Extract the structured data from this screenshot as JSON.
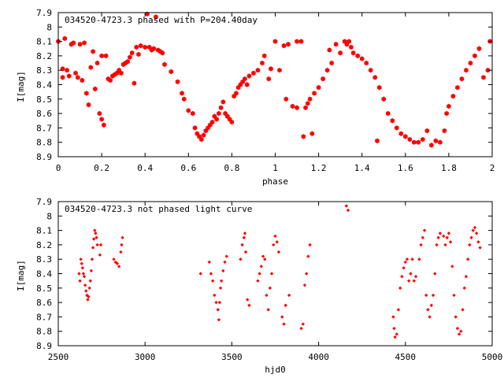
{
  "chart_data": [
    {
      "type": "scatter",
      "title": "034520-4723.3 phased with P=204.40day",
      "xlabel": "phase",
      "ylabel": "I[mag]",
      "xlim": [
        0,
        2
      ],
      "ylim": [
        7.9,
        8.9
      ],
      "y_inverted": true,
      "grid": false,
      "legend": "none",
      "color": "#ff0000",
      "marker": "star",
      "x_ticks": [
        0,
        0.2,
        0.4,
        0.6,
        0.8,
        1,
        1.2,
        1.4,
        1.6,
        1.8,
        2
      ],
      "x_tick_labels": [
        "0",
        "0.2",
        "0.4",
        "0.6",
        "0.8",
        "1",
        "1.2",
        "1.4",
        "1.6",
        "1.8",
        "2"
      ],
      "y_ticks": [
        7.9,
        8.0,
        8.1,
        8.2,
        8.3,
        8.4,
        8.5,
        8.6,
        8.7,
        8.8,
        8.9
      ],
      "y_tick_labels": [
        "7.9",
        "8",
        "8.1",
        "8.2",
        "8.3",
        "8.4",
        "8.5",
        "8.6",
        "8.7",
        "8.8",
        "8.9"
      ],
      "points": [
        [
          0.0,
          8.1
        ],
        [
          0.02,
          8.29
        ],
        [
          0.02,
          8.35
        ],
        [
          0.03,
          8.08
        ],
        [
          0.04,
          8.3
        ],
        [
          0.05,
          8.34
        ],
        [
          0.06,
          8.12
        ],
        [
          0.07,
          8.11
        ],
        [
          0.08,
          8.32
        ],
        [
          0.09,
          8.35
        ],
        [
          0.1,
          8.12
        ],
        [
          0.11,
          8.37
        ],
        [
          0.12,
          8.11
        ],
        [
          0.13,
          8.46
        ],
        [
          0.14,
          8.54
        ],
        [
          0.15,
          8.28
        ],
        [
          0.16,
          8.17
        ],
        [
          0.17,
          8.43
        ],
        [
          0.18,
          8.25
        ],
        [
          0.19,
          8.6
        ],
        [
          0.2,
          8.64
        ],
        [
          0.2,
          8.2
        ],
        [
          0.21,
          8.68
        ],
        [
          0.22,
          8.2
        ],
        [
          0.23,
          8.36
        ],
        [
          0.24,
          8.37
        ],
        [
          0.25,
          8.34
        ],
        [
          0.26,
          8.33
        ],
        [
          0.27,
          8.32
        ],
        [
          0.28,
          8.3
        ],
        [
          0.29,
          8.32
        ],
        [
          0.3,
          8.26
        ],
        [
          0.31,
          8.25
        ],
        [
          0.32,
          8.24
        ],
        [
          0.33,
          8.21
        ],
        [
          0.34,
          8.18
        ],
        [
          0.35,
          8.39
        ],
        [
          0.36,
          8.14
        ],
        [
          0.37,
          8.19
        ],
        [
          0.38,
          8.13
        ],
        [
          0.4,
          8.14
        ],
        [
          0.41,
          7.91
        ],
        [
          0.42,
          8.14
        ],
        [
          0.43,
          8.16
        ],
        [
          0.44,
          8.15
        ],
        [
          0.45,
          7.93
        ],
        [
          0.46,
          8.16
        ],
        [
          0.47,
          8.17
        ],
        [
          0.48,
          8.18
        ],
        [
          0.49,
          8.26
        ],
        [
          0.52,
          8.31
        ],
        [
          0.55,
          8.38
        ],
        [
          0.57,
          8.46
        ],
        [
          0.58,
          8.5
        ],
        [
          0.6,
          8.58
        ],
        [
          0.62,
          8.6
        ],
        [
          0.63,
          8.7
        ],
        [
          0.64,
          8.74
        ],
        [
          0.65,
          8.76
        ],
        [
          0.66,
          8.78
        ],
        [
          0.67,
          8.75
        ],
        [
          0.68,
          8.72
        ],
        [
          0.69,
          8.7
        ],
        [
          0.7,
          8.68
        ],
        [
          0.71,
          8.66
        ],
        [
          0.72,
          8.62
        ],
        [
          0.73,
          8.64
        ],
        [
          0.74,
          8.6
        ],
        [
          0.75,
          8.56
        ],
        [
          0.76,
          8.52
        ],
        [
          0.77,
          8.6
        ],
        [
          0.78,
          8.62
        ],
        [
          0.79,
          8.64
        ],
        [
          0.8,
          8.66
        ],
        [
          0.81,
          8.48
        ],
        [
          0.82,
          8.46
        ],
        [
          0.83,
          8.42
        ],
        [
          0.84,
          8.4
        ],
        [
          0.85,
          8.38
        ],
        [
          0.86,
          8.36
        ],
        [
          0.87,
          8.4
        ],
        [
          0.88,
          8.34
        ],
        [
          0.9,
          8.32
        ],
        [
          0.92,
          8.3
        ],
        [
          0.94,
          8.25
        ],
        [
          0.95,
          8.2
        ],
        [
          0.97,
          8.36
        ],
        [
          0.98,
          8.29
        ],
        [
          1.0,
          8.1
        ],
        [
          1.02,
          8.3
        ],
        [
          1.04,
          8.13
        ],
        [
          1.05,
          8.5
        ],
        [
          1.06,
          8.12
        ],
        [
          1.08,
          8.55
        ],
        [
          1.1,
          8.1
        ],
        [
          1.1,
          8.56
        ],
        [
          1.12,
          8.1
        ],
        [
          1.13,
          8.76
        ],
        [
          1.14,
          8.56
        ],
        [
          1.15,
          8.53
        ],
        [
          1.16,
          8.5
        ],
        [
          1.17,
          8.74
        ],
        [
          1.18,
          8.46
        ],
        [
          1.2,
          8.42
        ],
        [
          1.22,
          8.36
        ],
        [
          1.24,
          8.3
        ],
        [
          1.25,
          8.16
        ],
        [
          1.26,
          8.25
        ],
        [
          1.28,
          8.12
        ],
        [
          1.3,
          8.18
        ],
        [
          1.32,
          8.1
        ],
        [
          1.33,
          8.12
        ],
        [
          1.34,
          8.1
        ],
        [
          1.35,
          8.14
        ],
        [
          1.36,
          8.18
        ],
        [
          1.38,
          8.2
        ],
        [
          1.4,
          8.22
        ],
        [
          1.42,
          8.25
        ],
        [
          1.44,
          8.3
        ],
        [
          1.46,
          8.35
        ],
        [
          1.47,
          8.79
        ],
        [
          1.48,
          8.42
        ],
        [
          1.5,
          8.5
        ],
        [
          1.52,
          8.6
        ],
        [
          1.54,
          8.65
        ],
        [
          1.56,
          8.7
        ],
        [
          1.58,
          8.74
        ],
        [
          1.6,
          8.76
        ],
        [
          1.62,
          8.78
        ],
        [
          1.64,
          8.8
        ],
        [
          1.66,
          8.8
        ],
        [
          1.68,
          8.78
        ],
        [
          1.7,
          8.72
        ],
        [
          1.72,
          8.82
        ],
        [
          1.74,
          8.79
        ],
        [
          1.76,
          8.8
        ],
        [
          1.78,
          8.72
        ],
        [
          1.79,
          8.6
        ],
        [
          1.8,
          8.55
        ],
        [
          1.82,
          8.48
        ],
        [
          1.84,
          8.42
        ],
        [
          1.86,
          8.36
        ],
        [
          1.88,
          8.3
        ],
        [
          1.9,
          8.25
        ],
        [
          1.92,
          8.2
        ],
        [
          1.94,
          8.15
        ],
        [
          1.96,
          8.35
        ],
        [
          1.98,
          8.3
        ],
        [
          1.99,
          8.1
        ]
      ]
    },
    {
      "type": "scatter",
      "title": "034520-4723.3 not phased light curve",
      "xlabel": "hjd0",
      "ylabel": "I[mag]",
      "xlim": [
        2500,
        5000
      ],
      "ylim": [
        7.9,
        8.9
      ],
      "y_inverted": true,
      "grid": false,
      "legend": "none",
      "color": "#ff0000",
      "marker": "diamond",
      "x_ticks": [
        2500,
        3000,
        3500,
        4000,
        4500,
        5000
      ],
      "x_tick_labels": [
        "2500",
        "3000",
        "3500",
        "4000",
        "4500",
        "5000"
      ],
      "y_ticks": [
        7.9,
        8.0,
        8.1,
        8.2,
        8.3,
        8.4,
        8.5,
        8.6,
        8.7,
        8.8,
        8.9
      ],
      "y_tick_labels": [
        "7.9",
        "8",
        "8.1",
        "8.2",
        "8.3",
        "8.4",
        "8.5",
        "8.6",
        "8.7",
        "8.8",
        "8.9"
      ],
      "points": [
        [
          2620,
          8.4
        ],
        [
          2625,
          8.45
        ],
        [
          2630,
          8.3
        ],
        [
          2635,
          8.33
        ],
        [
          2640,
          8.36
        ],
        [
          2645,
          8.4
        ],
        [
          2650,
          8.42
        ],
        [
          2655,
          8.48
        ],
        [
          2660,
          8.52
        ],
        [
          2665,
          8.55
        ],
        [
          2670,
          8.58
        ],
        [
          2675,
          8.56
        ],
        [
          2680,
          8.5
        ],
        [
          2685,
          8.45
        ],
        [
          2690,
          8.38
        ],
        [
          2695,
          8.3
        ],
        [
          2700,
          8.22
        ],
        [
          2705,
          8.16
        ],
        [
          2710,
          8.1
        ],
        [
          2715,
          8.12
        ],
        [
          2720,
          8.15
        ],
        [
          2725,
          8.2
        ],
        [
          2740,
          8.27
        ],
        [
          2745,
          8.2
        ],
        [
          2820,
          8.3
        ],
        [
          2830,
          8.32
        ],
        [
          2840,
          8.33
        ],
        [
          2850,
          8.35
        ],
        [
          2860,
          8.25
        ],
        [
          2865,
          8.2
        ],
        [
          2870,
          8.15
        ],
        [
          3320,
          8.4
        ],
        [
          3370,
          8.32
        ],
        [
          3380,
          8.4
        ],
        [
          3390,
          8.45
        ],
        [
          3400,
          8.55
        ],
        [
          3410,
          8.6
        ],
        [
          3420,
          8.65
        ],
        [
          3425,
          8.72
        ],
        [
          3430,
          8.6
        ],
        [
          3435,
          8.5
        ],
        [
          3440,
          8.45
        ],
        [
          3450,
          8.38
        ],
        [
          3460,
          8.32
        ],
        [
          3470,
          8.28
        ],
        [
          3550,
          8.3
        ],
        [
          3560,
          8.2
        ],
        [
          3570,
          8.15
        ],
        [
          3575,
          8.12
        ],
        [
          3580,
          8.25
        ],
        [
          3590,
          8.58
        ],
        [
          3600,
          8.62
        ],
        [
          3650,
          8.45
        ],
        [
          3660,
          8.4
        ],
        [
          3670,
          8.35
        ],
        [
          3680,
          8.28
        ],
        [
          3690,
          8.3
        ],
        [
          3700,
          8.55
        ],
        [
          3710,
          8.65
        ],
        [
          3720,
          8.5
        ],
        [
          3730,
          8.4
        ],
        [
          3740,
          8.2
        ],
        [
          3750,
          8.14
        ],
        [
          3760,
          8.18
        ],
        [
          3770,
          8.25
        ],
        [
          3790,
          8.7
        ],
        [
          3800,
          8.75
        ],
        [
          3810,
          8.62
        ],
        [
          3830,
          8.55
        ],
        [
          3900,
          8.78
        ],
        [
          3910,
          8.75
        ],
        [
          3920,
          8.48
        ],
        [
          3930,
          8.4
        ],
        [
          3940,
          8.28
        ],
        [
          3950,
          8.2
        ],
        [
          4160,
          7.93
        ],
        [
          4170,
          7.96
        ],
        [
          4430,
          8.7
        ],
        [
          4435,
          8.78
        ],
        [
          4440,
          8.84
        ],
        [
          4450,
          8.82
        ],
        [
          4460,
          8.65
        ],
        [
          4470,
          8.5
        ],
        [
          4480,
          8.42
        ],
        [
          4490,
          8.36
        ],
        [
          4500,
          8.32
        ],
        [
          4510,
          8.3
        ],
        [
          4520,
          8.45
        ],
        [
          4530,
          8.4
        ],
        [
          4540,
          8.3
        ],
        [
          4550,
          8.45
        ],
        [
          4560,
          8.42
        ],
        [
          4580,
          8.3
        ],
        [
          4590,
          8.2
        ],
        [
          4600,
          8.15
        ],
        [
          4610,
          8.1
        ],
        [
          4620,
          8.55
        ],
        [
          4630,
          8.65
        ],
        [
          4640,
          8.7
        ],
        [
          4650,
          8.62
        ],
        [
          4660,
          8.55
        ],
        [
          4670,
          8.4
        ],
        [
          4680,
          8.2
        ],
        [
          4690,
          8.15
        ],
        [
          4700,
          8.12
        ],
        [
          4720,
          8.14
        ],
        [
          4730,
          8.2
        ],
        [
          4740,
          8.15
        ],
        [
          4750,
          8.12
        ],
        [
          4760,
          8.18
        ],
        [
          4770,
          8.35
        ],
        [
          4780,
          8.55
        ],
        [
          4790,
          8.7
        ],
        [
          4800,
          8.78
        ],
        [
          4810,
          8.82
        ],
        [
          4820,
          8.8
        ],
        [
          4830,
          8.65
        ],
        [
          4840,
          8.5
        ],
        [
          4850,
          8.42
        ],
        [
          4860,
          8.3
        ],
        [
          4870,
          8.2
        ],
        [
          4880,
          8.15
        ],
        [
          4890,
          8.1
        ],
        [
          4900,
          8.08
        ],
        [
          4910,
          8.12
        ],
        [
          4920,
          8.18
        ],
        [
          4930,
          8.22
        ]
      ]
    }
  ]
}
